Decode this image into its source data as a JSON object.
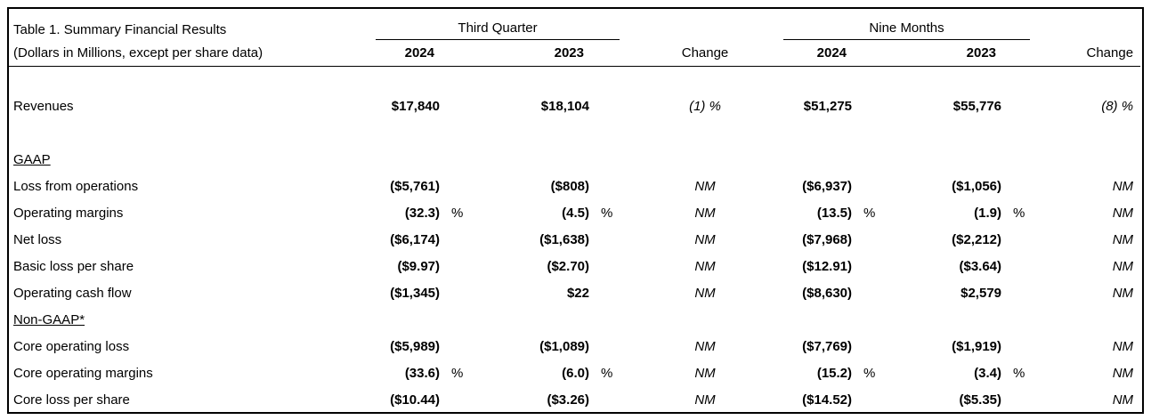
{
  "page": {
    "background_color": "#ffffff",
    "border_color": "#000000",
    "text_color": "#000000"
  },
  "table": {
    "title": "Table 1. Summary Financial Results",
    "subtitle": "(Dollars in Millions, except per share data)",
    "groups": {
      "third_quarter": {
        "label": "Third Quarter",
        "col_2024": "2024",
        "col_2023": "2023",
        "change": "Change"
      },
      "nine_months": {
        "label": "Nine Months",
        "col_2024": "2024",
        "col_2023": "2023",
        "change": "Change"
      }
    },
    "rows": [
      {
        "type": "spacer"
      },
      {
        "type": "data",
        "label": "Revenues",
        "v1": "$17,840",
        "v2": "$18,104",
        "c1": "(1) %",
        "v3": "$51,275",
        "v4": "$55,776",
        "c2": "(8) %"
      },
      {
        "type": "spacer"
      },
      {
        "type": "section",
        "label": "GAAP"
      },
      {
        "type": "data",
        "label": "Loss from operations",
        "v1": "($5,761)",
        "v2": "($808)",
        "c1": "NM",
        "v3": "($6,937)",
        "v4": "($1,056)",
        "c2": "NM"
      },
      {
        "type": "data",
        "label": "Operating margins",
        "v1": "(32.3)",
        "p1": "%",
        "v2": "(4.5)",
        "p2": "%",
        "c1": "NM",
        "v3": "(13.5)",
        "p3": "%",
        "v4": "(1.9)",
        "p4": "%",
        "c2": "NM"
      },
      {
        "type": "data",
        "label": "Net loss",
        "v1": "($6,174)",
        "v2": "($1,638)",
        "c1": "NM",
        "v3": "($7,968)",
        "v4": "($2,212)",
        "c2": "NM"
      },
      {
        "type": "data",
        "label": "Basic loss per share",
        "v1": "($9.97)",
        "v2": "($2.70)",
        "c1": "NM",
        "v3": "($12.91)",
        "v4": "($3.64)",
        "c2": "NM"
      },
      {
        "type": "data",
        "label": "Operating cash flow",
        "v1": "($1,345)",
        "v2": "$22",
        "c1": "NM",
        "v3": "($8,630)",
        "v4": "$2,579",
        "c2": "NM"
      },
      {
        "type": "section",
        "label": "Non-GAAP*"
      },
      {
        "type": "data",
        "label": "Core operating loss",
        "v1": "($5,989)",
        "v2": "($1,089)",
        "c1": "NM",
        "v3": "($7,769)",
        "v4": "($1,919)",
        "c2": "NM"
      },
      {
        "type": "data",
        "label": "Core operating margins",
        "v1": "(33.6)",
        "p1": "%",
        "v2": "(6.0)",
        "p2": "%",
        "c1": "NM",
        "v3": "(15.2)",
        "p3": "%",
        "v4": "(3.4)",
        "p4": "%",
        "c2": "NM"
      },
      {
        "type": "data",
        "label": "Core loss per share",
        "v1": "($10.44)",
        "v2": "($3.26)",
        "c1": "NM",
        "v3": "($14.52)",
        "v4": "($5.35)",
        "c2": "NM"
      }
    ]
  }
}
